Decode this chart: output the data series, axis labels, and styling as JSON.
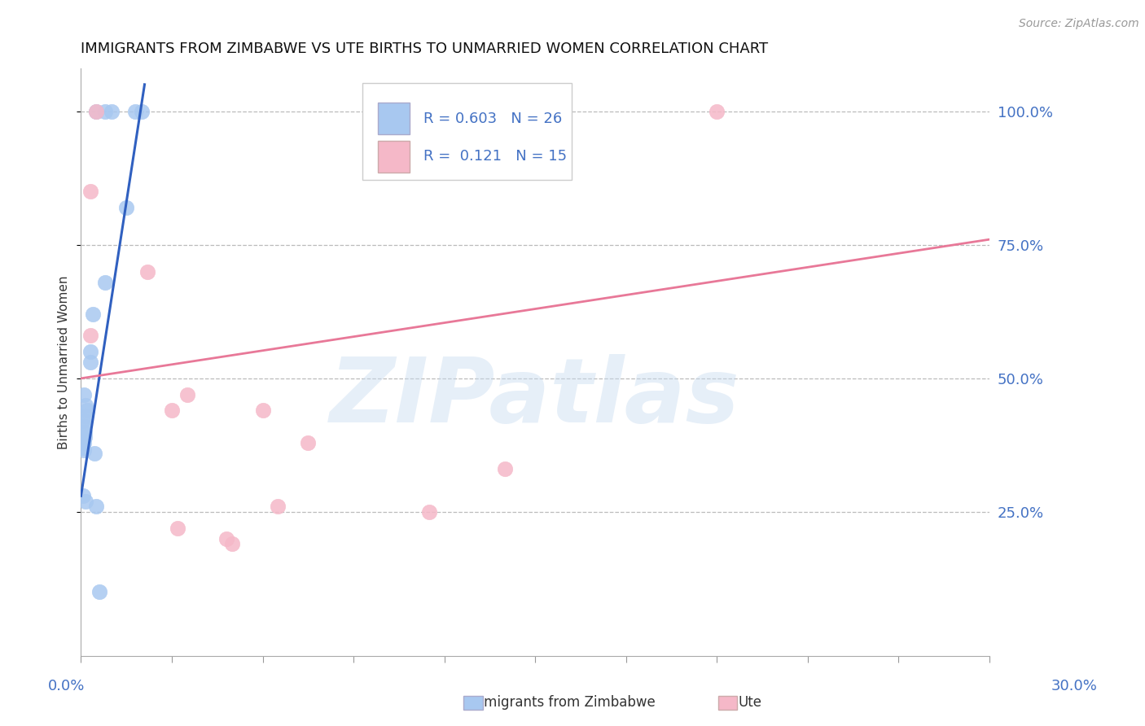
{
  "title": "IMMIGRANTS FROM ZIMBABWE VS UTE BIRTHS TO UNMARRIED WOMEN CORRELATION CHART",
  "source": "Source: ZipAtlas.com",
  "ylabel": "Births to Unmarried Women",
  "xlim": [
    0.0,
    30.0
  ],
  "ylim": [
    -2.0,
    108.0
  ],
  "legend_blue_R": "0.603",
  "legend_blue_N": "26",
  "legend_pink_R": "0.121",
  "legend_pink_N": "15",
  "blue_color": "#A8C8F0",
  "pink_color": "#F5B8C8",
  "blue_line_color": "#3060C0",
  "pink_line_color": "#E87898",
  "blue_scatter": [
    [
      0.5,
      100.0
    ],
    [
      0.8,
      100.0
    ],
    [
      1.0,
      100.0
    ],
    [
      1.8,
      100.0
    ],
    [
      2.0,
      100.0
    ],
    [
      1.5,
      82.0
    ],
    [
      0.8,
      68.0
    ],
    [
      0.4,
      62.0
    ],
    [
      0.3,
      55.0
    ],
    [
      0.3,
      53.0
    ],
    [
      0.1,
      47.0
    ],
    [
      0.15,
      45.0
    ],
    [
      0.2,
      44.0
    ],
    [
      0.15,
      43.0
    ],
    [
      0.07,
      42.0
    ],
    [
      0.1,
      41.0
    ],
    [
      0.12,
      40.0
    ],
    [
      0.13,
      39.0
    ],
    [
      0.09,
      38.0
    ],
    [
      0.06,
      37.0
    ],
    [
      0.1,
      36.5
    ],
    [
      0.45,
      36.0
    ],
    [
      0.07,
      28.0
    ],
    [
      0.15,
      27.0
    ],
    [
      0.5,
      26.0
    ],
    [
      0.6,
      10.0
    ]
  ],
  "pink_scatter": [
    [
      0.5,
      100.0
    ],
    [
      21.0,
      100.0
    ],
    [
      0.3,
      85.0
    ],
    [
      2.2,
      70.0
    ],
    [
      0.3,
      58.0
    ],
    [
      3.5,
      47.0
    ],
    [
      3.0,
      44.0
    ],
    [
      6.0,
      44.0
    ],
    [
      7.5,
      38.0
    ],
    [
      14.0,
      33.0
    ],
    [
      6.5,
      26.0
    ],
    [
      3.2,
      22.0
    ],
    [
      11.5,
      25.0
    ],
    [
      5.0,
      19.0
    ],
    [
      4.8,
      20.0
    ]
  ],
  "blue_trend_x": [
    0.0,
    2.1
  ],
  "blue_trend_y": [
    28.0,
    105.0
  ],
  "pink_trend_x": [
    0.0,
    30.0
  ],
  "pink_trend_y": [
    50.0,
    76.0
  ],
  "yticks": [
    25.0,
    50.0,
    75.0,
    100.0
  ],
  "ytick_labels": [
    "25.0%",
    "50.0%",
    "75.0%",
    "100.0%"
  ],
  "xtick_count": 11,
  "watermark": "ZIPatlas",
  "background_color": "#FFFFFF",
  "grid_color": "#BBBBBB"
}
